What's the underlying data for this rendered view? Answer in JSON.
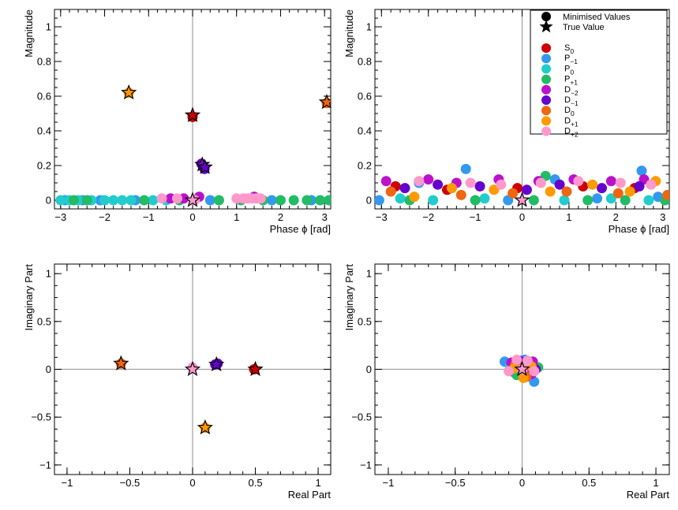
{
  "chart_data": [
    {
      "type": "scatter",
      "xlabel": "Phase ϕ [rad]",
      "ylabel": "Magnitude",
      "xlim": [
        -3.14,
        3.14
      ],
      "ylim": [
        -0.05,
        1.1
      ],
      "xticks": [
        "−3",
        "−2",
        "−1",
        "0",
        "1",
        "2",
        "3"
      ],
      "xtick_values": [
        -3,
        -2,
        -1,
        0,
        1,
        2,
        3
      ],
      "yticks": [
        "0",
        "0.2",
        "0.4",
        "0.6",
        "0.8",
        "1"
      ],
      "ytick_values": [
        0,
        0.2,
        0.4,
        0.6,
        0.8,
        1.0
      ],
      "reference_lines": {
        "x": 0
      },
      "true_values": [
        {
          "x": -1.45,
          "y": 0.62,
          "color": "#ff9a00"
        },
        {
          "x": 3.05,
          "y": 0.565,
          "color": "#ee6611"
        },
        {
          "x": 0.0,
          "y": 0.49,
          "color": "#cc0000"
        },
        {
          "x": 0.22,
          "y": 0.205,
          "color": "#7a0fcc"
        },
        {
          "x": 0.28,
          "y": 0.19,
          "color": "#6600cc"
        },
        {
          "x": 0.0,
          "y": 0.0,
          "color": "#ff99cc"
        }
      ],
      "series": [
        {
          "name": "S0",
          "color": "#cc0000",
          "points": [
            {
              "x": 0.0,
              "y": 0.48
            }
          ]
        },
        {
          "name": "P-1",
          "color": "#3399ee",
          "points": [
            {
              "x": -2.9,
              "y": 0.0
            },
            {
              "x": -2.5,
              "y": 0.0
            },
            {
              "x": -2.1,
              "y": 0.0
            },
            {
              "x": -1.3,
              "y": 0.0
            },
            {
              "x": 0.4,
              "y": 0.0
            },
            {
              "x": 1.8,
              "y": 0.0
            },
            {
              "x": 2.7,
              "y": 0.0
            }
          ]
        },
        {
          "name": "P0",
          "color": "#22cccc",
          "points": [
            {
              "x": -3.0,
              "y": 0.0
            },
            {
              "x": -2.8,
              "y": 0.0
            },
            {
              "x": -2.6,
              "y": 0.0
            },
            {
              "x": -2.3,
              "y": 0.0
            },
            {
              "x": -2.0,
              "y": 0.0
            },
            {
              "x": -1.8,
              "y": 0.0
            },
            {
              "x": -1.6,
              "y": 0.0
            },
            {
              "x": -1.4,
              "y": 0.0
            },
            {
              "x": -0.9,
              "y": 0.0
            },
            {
              "x": -0.6,
              "y": 0.0
            }
          ]
        },
        {
          "name": "P+1",
          "color": "#22bb66",
          "points": [
            {
              "x": -2.7,
              "y": 0.0
            },
            {
              "x": -2.4,
              "y": 0.0
            },
            {
              "x": -1.1,
              "y": 0.0
            },
            {
              "x": -0.3,
              "y": 0.0
            },
            {
              "x": 0.6,
              "y": 0.0
            },
            {
              "x": 1.1,
              "y": 0.0
            },
            {
              "x": 1.6,
              "y": 0.0
            },
            {
              "x": 2.0,
              "y": 0.0
            },
            {
              "x": 2.3,
              "y": 0.0
            },
            {
              "x": 2.6,
              "y": 0.0
            },
            {
              "x": 2.9,
              "y": 0.0
            },
            {
              "x": 3.1,
              "y": 0.0
            }
          ]
        },
        {
          "name": "D-2",
          "color": "#bb11cc",
          "points": [
            {
              "x": -0.5,
              "y": 0.01
            },
            {
              "x": -0.2,
              "y": 0.01
            },
            {
              "x": 0.15,
              "y": 0.02
            },
            {
              "x": 1.4,
              "y": 0.02
            }
          ]
        },
        {
          "name": "D-1",
          "color": "#6600cc",
          "points": [
            {
              "x": 0.2,
              "y": 0.21
            },
            {
              "x": 0.27,
              "y": 0.18
            }
          ]
        },
        {
          "name": "D0",
          "color": "#ee6611",
          "points": [
            {
              "x": 3.05,
              "y": 0.56
            }
          ]
        },
        {
          "name": "D+1",
          "color": "#ff9a00",
          "points": [
            {
              "x": -1.45,
              "y": 0.62
            }
          ]
        },
        {
          "name": "D+2",
          "color": "#ff99cc",
          "points": [
            {
              "x": -0.7,
              "y": 0.01
            },
            {
              "x": -0.35,
              "y": 0.01
            },
            {
              "x": 0.05,
              "y": 0.0
            },
            {
              "x": 1.0,
              "y": 0.01
            },
            {
              "x": 1.15,
              "y": 0.01
            },
            {
              "x": 1.25,
              "y": 0.01
            },
            {
              "x": 1.35,
              "y": 0.01
            },
            {
              "x": 1.45,
              "y": 0.01
            },
            {
              "x": 1.55,
              "y": 0.01
            }
          ]
        }
      ]
    },
    {
      "type": "scatter",
      "xlabel": "Phase ϕ [rad]",
      "ylabel": "Magnitude",
      "xlim": [
        -3.14,
        3.14
      ],
      "ylim": [
        -0.05,
        1.1
      ],
      "xticks": [
        "−3",
        "−2",
        "−1",
        "0",
        "1",
        "2",
        "3"
      ],
      "xtick_values": [
        -3,
        -2,
        -1,
        0,
        1,
        2,
        3
      ],
      "yticks": [
        "0",
        "0.2",
        "0.4",
        "0.6",
        "0.8",
        "1"
      ],
      "ytick_values": [
        0,
        0.2,
        0.4,
        0.6,
        0.8,
        1.0
      ],
      "reference_lines": {
        "x": 0
      },
      "true_values": [
        {
          "x": 0.0,
          "y": 0.0,
          "color": "#ff99cc"
        }
      ],
      "legend": {
        "placement": "top-right",
        "header": [
          {
            "label": "Minimised Values",
            "marker": "circle"
          },
          {
            "label": "True Value",
            "marker": "star"
          }
        ],
        "entries": [
          {
            "base": "S",
            "sub": "0",
            "color": "#cc0000"
          },
          {
            "base": "P",
            "sub": "−1",
            "color": "#3399ee"
          },
          {
            "base": "P",
            "sub": "0",
            "color": "#22cccc"
          },
          {
            "base": "P",
            "sub": "+1",
            "color": "#22bb66"
          },
          {
            "base": "D",
            "sub": "−2",
            "color": "#bb11cc"
          },
          {
            "base": "D",
            "sub": "−1",
            "color": "#6600cc"
          },
          {
            "base": "D",
            "sub": "0",
            "color": "#ee6611"
          },
          {
            "base": "D",
            "sub": "+1",
            "color": "#ff9a00"
          },
          {
            "base": "D",
            "sub": "+2",
            "color": "#ff99cc"
          }
        ]
      },
      "series": [
        {
          "name": "S0",
          "color": "#cc0000",
          "points": [
            {
              "x": -2.7,
              "y": 0.08
            },
            {
              "x": -1.6,
              "y": 0.06
            },
            {
              "x": -0.1,
              "y": 0.07
            },
            {
              "x": 1.3,
              "y": 0.08
            },
            {
              "x": 2.4,
              "y": 0.07
            }
          ]
        },
        {
          "name": "P-1",
          "color": "#3399ee",
          "points": [
            {
              "x": -3.05,
              "y": 0.0
            },
            {
              "x": -2.2,
              "y": 0.1
            },
            {
              "x": -1.2,
              "y": 0.18
            },
            {
              "x": -0.3,
              "y": 0.0
            },
            {
              "x": 0.7,
              "y": 0.12
            },
            {
              "x": 1.6,
              "y": 0.01
            },
            {
              "x": 2.55,
              "y": 0.17
            },
            {
              "x": 2.9,
              "y": 0.02
            }
          ]
        },
        {
          "name": "P0",
          "color": "#22cccc",
          "points": [
            {
              "x": -2.6,
              "y": 0.01
            },
            {
              "x": -1.9,
              "y": 0.0
            },
            {
              "x": -0.8,
              "y": 0.01
            },
            {
              "x": 0.9,
              "y": 0.0
            },
            {
              "x": 1.9,
              "y": 0.01
            },
            {
              "x": 2.7,
              "y": 0.0
            }
          ]
        },
        {
          "name": "P+1",
          "color": "#22bb66",
          "points": [
            {
              "x": -2.4,
              "y": 0.0
            },
            {
              "x": -1.0,
              "y": 0.0
            },
            {
              "x": 0.25,
              "y": 0.0
            },
            {
              "x": 0.5,
              "y": 0.14
            },
            {
              "x": 1.4,
              "y": 0.0
            },
            {
              "x": 2.2,
              "y": 0.0
            },
            {
              "x": 3.05,
              "y": 0.0
            }
          ]
        },
        {
          "name": "D-2",
          "color": "#bb11cc",
          "points": [
            {
              "x": -2.9,
              "y": 0.11
            },
            {
              "x": -2.0,
              "y": 0.12
            },
            {
              "x": -1.4,
              "y": 0.1
            },
            {
              "x": -0.5,
              "y": 0.12
            },
            {
              "x": 0.35,
              "y": 0.11
            },
            {
              "x": 1.1,
              "y": 0.12
            },
            {
              "x": 1.9,
              "y": 0.11
            },
            {
              "x": 2.6,
              "y": 0.12
            }
          ]
        },
        {
          "name": "D-1",
          "color": "#6600cc",
          "points": [
            {
              "x": -2.5,
              "y": 0.07
            },
            {
              "x": -1.8,
              "y": 0.09
            },
            {
              "x": -0.9,
              "y": 0.08
            },
            {
              "x": 0.1,
              "y": 0.06
            },
            {
              "x": 0.8,
              "y": 0.09
            },
            {
              "x": 1.7,
              "y": 0.07
            },
            {
              "x": 2.5,
              "y": 0.08
            }
          ]
        },
        {
          "name": "D0",
          "color": "#ee6611",
          "points": [
            {
              "x": -2.8,
              "y": 0.05
            },
            {
              "x": -1.3,
              "y": 0.03
            },
            {
              "x": -0.2,
              "y": 0.04
            },
            {
              "x": 0.95,
              "y": 0.05
            },
            {
              "x": 2.05,
              "y": 0.04
            },
            {
              "x": 3.1,
              "y": 0.03
            }
          ]
        },
        {
          "name": "D+1",
          "color": "#ff9a00",
          "points": [
            {
              "x": -2.3,
              "y": 0.02
            },
            {
              "x": -1.5,
              "y": 0.07
            },
            {
              "x": -0.6,
              "y": 0.06
            },
            {
              "x": 0.6,
              "y": 0.05
            },
            {
              "x": 1.5,
              "y": 0.09
            },
            {
              "x": 2.3,
              "y": 0.05
            },
            {
              "x": 2.85,
              "y": 0.11
            }
          ]
        },
        {
          "name": "D+2",
          "color": "#ff99cc",
          "points": [
            {
              "x": -2.2,
              "y": 0.11
            },
            {
              "x": -1.1,
              "y": 0.1
            },
            {
              "x": -0.45,
              "y": 0.09
            },
            {
              "x": 0.4,
              "y": 0.1
            },
            {
              "x": 1.2,
              "y": 0.11
            },
            {
              "x": 2.1,
              "y": 0.1
            },
            {
              "x": 2.75,
              "y": 0.09
            }
          ]
        }
      ]
    },
    {
      "type": "scatter",
      "xlabel": "Real Part",
      "ylabel": "Imaginary Part",
      "xlim": [
        -1.1,
        1.1
      ],
      "ylim": [
        -1.1,
        1.1
      ],
      "xticks": [
        "−1",
        "−0.5",
        "0",
        "0.5",
        "1"
      ],
      "xtick_values": [
        -1,
        -0.5,
        0,
        0.5,
        1
      ],
      "yticks": [
        "−1",
        "−0.5",
        "0",
        "0.5",
        "1"
      ],
      "ytick_values": [
        -1,
        -0.5,
        0,
        0.5,
        1
      ],
      "reference_lines": {
        "x": 0,
        "y": 0
      },
      "true_values": [
        {
          "x": -0.57,
          "y": 0.06,
          "color": "#ee6611"
        },
        {
          "x": 0.0,
          "y": 0.0,
          "color": "#ff99cc"
        },
        {
          "x": 0.19,
          "y": 0.05,
          "color": "#6600cc"
        },
        {
          "x": 0.5,
          "y": 0.0,
          "color": "#cc0000"
        },
        {
          "x": 0.1,
          "y": -0.61,
          "color": "#ff9a00"
        }
      ],
      "series": [
        {
          "name": "S0",
          "color": "#cc0000",
          "points": [
            {
              "x": 0.49,
              "y": 0.0
            }
          ]
        },
        {
          "name": "D-1",
          "color": "#6600cc",
          "points": [
            {
              "x": 0.18,
              "y": 0.05
            },
            {
              "x": 0.2,
              "y": 0.06
            }
          ]
        },
        {
          "name": "D0",
          "color": "#ee6611",
          "points": [
            {
              "x": -0.57,
              "y": 0.06
            }
          ]
        },
        {
          "name": "D+1",
          "color": "#ff9a00",
          "points": [
            {
              "x": 0.1,
              "y": -0.61
            }
          ]
        },
        {
          "name": "D+2",
          "color": "#ff99cc",
          "points": [
            {
              "x": 0.0,
              "y": 0.02
            }
          ]
        }
      ]
    },
    {
      "type": "scatter",
      "xlabel": "Real Part",
      "ylabel": "Imaginary Part",
      "xlim": [
        -1.1,
        1.1
      ],
      "ylim": [
        -1.1,
        1.1
      ],
      "xticks": [
        "−1",
        "−0.5",
        "0",
        "0.5",
        "1"
      ],
      "xtick_values": [
        -1,
        -0.5,
        0,
        0.5,
        1
      ],
      "yticks": [
        "−1",
        "−0.5",
        "0",
        "0.5",
        "1"
      ],
      "ytick_values": [
        -1,
        -0.5,
        0,
        0.5,
        1
      ],
      "reference_lines": {
        "x": 0,
        "y": 0
      },
      "true_values": [
        {
          "x": 0.0,
          "y": 0.0,
          "color": "#ff99cc"
        }
      ],
      "series": [
        {
          "name": "S0",
          "color": "#cc0000",
          "points": [
            {
              "x": 0.05,
              "y": 0.04
            },
            {
              "x": -0.06,
              "y": -0.03
            }
          ]
        },
        {
          "name": "P-1",
          "color": "#3399ee",
          "points": [
            {
              "x": -0.13,
              "y": 0.08
            },
            {
              "x": 0.09,
              "y": -0.13
            },
            {
              "x": 0.02,
              "y": 0.1
            }
          ]
        },
        {
          "name": "P0",
          "color": "#22cccc",
          "points": [
            {
              "x": -0.09,
              "y": 0.02
            },
            {
              "x": 0.06,
              "y": 0.06
            }
          ]
        },
        {
          "name": "P+1",
          "color": "#22bb66",
          "points": [
            {
              "x": 0.12,
              "y": 0.02
            },
            {
              "x": -0.04,
              "y": -0.06
            }
          ]
        },
        {
          "name": "D-2",
          "color": "#bb11cc",
          "points": [
            {
              "x": 0.08,
              "y": 0.08
            },
            {
              "x": -0.08,
              "y": 0.07
            },
            {
              "x": 0.07,
              "y": -0.05
            }
          ]
        },
        {
          "name": "D-1",
          "color": "#6600cc",
          "points": [
            {
              "x": 0.1,
              "y": 0.0
            },
            {
              "x": -0.02,
              "y": 0.09
            }
          ]
        },
        {
          "name": "D0",
          "color": "#ee6611",
          "points": [
            {
              "x": -0.05,
              "y": 0.05
            },
            {
              "x": 0.03,
              "y": -0.08
            }
          ]
        },
        {
          "name": "D+1",
          "color": "#ff9a00",
          "points": [
            {
              "x": -0.06,
              "y": 0.01
            },
            {
              "x": 0.01,
              "y": -0.09
            },
            {
              "x": 0.07,
              "y": 0.03
            }
          ]
        },
        {
          "name": "D+2",
          "color": "#ff99cc",
          "points": [
            {
              "x": 0.0,
              "y": 0.0
            },
            {
              "x": -0.1,
              "y": -0.02
            },
            {
              "x": 0.09,
              "y": -0.02
            },
            {
              "x": -0.04,
              "y": 0.1
            },
            {
              "x": 0.04,
              "y": 0.09
            }
          ]
        }
      ]
    }
  ]
}
